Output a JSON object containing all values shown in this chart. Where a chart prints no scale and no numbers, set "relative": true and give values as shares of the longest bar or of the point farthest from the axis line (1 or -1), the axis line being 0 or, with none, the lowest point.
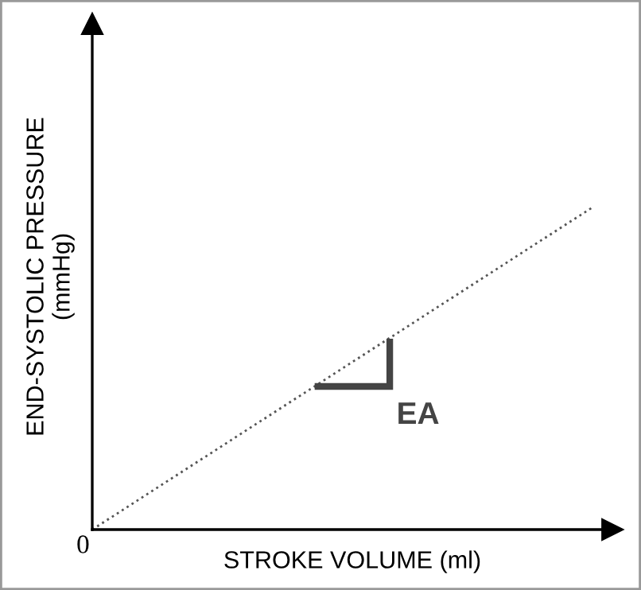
{
  "chart_data": {
    "type": "line",
    "relative": true,
    "xlabel": "STROKE VOLUME (ml)",
    "ylabel": "END-SYSTOLIC PRESSURE\n(mmHg)",
    "categories": [
      null,
      null
    ],
    "series": [
      {
        "color": "#555555",
        "values": [
          0,
          1
        ]
      }
    ],
    "line_style": "dotted",
    "marker": "none",
    "grid": false,
    "legend": false,
    "annotations": [
      "EA",
      "0"
    ]
  }
}
